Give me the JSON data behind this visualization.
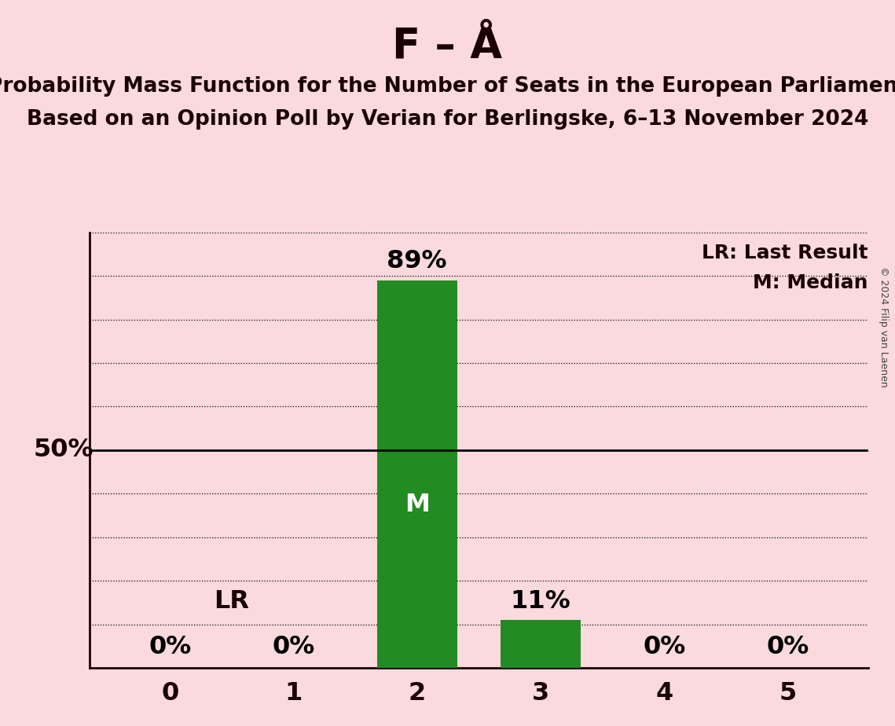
{
  "title": "F – Å",
  "subtitle1": "Probability Mass Function for the Number of Seats in the European Parliament",
  "subtitle2": "Based on an Opinion Poll by Verian for Berlingske, 6–13 November 2024",
  "copyright": "© 2024 Filip van Laenen",
  "categories": [
    0,
    1,
    2,
    3,
    4,
    5
  ],
  "values": [
    0,
    0,
    89,
    11,
    0,
    0
  ],
  "bar_color": "#228B22",
  "background_color": "#FADADD",
  "text_color": "#1a0000",
  "bar_label_color_dark": "#000000",
  "bar_label_color_light": "#ffffff",
  "median_seat": 2,
  "lr_seat": 2,
  "ylim": [
    0,
    100
  ],
  "ytick_50_label": "50%",
  "legend_lr": "LR: Last Result",
  "legend_m": "M: Median",
  "lr_label": "LR",
  "m_label": "M",
  "title_fontsize": 38,
  "subtitle_fontsize": 19,
  "bar_label_fontsize": 23,
  "tick_label_fontsize": 23,
  "fifty_pct_fontsize": 23,
  "legend_fontsize": 18,
  "copyright_fontsize": 9,
  "dotted_y_levels": [
    10,
    20,
    30,
    40,
    60,
    70,
    80,
    90,
    100
  ]
}
